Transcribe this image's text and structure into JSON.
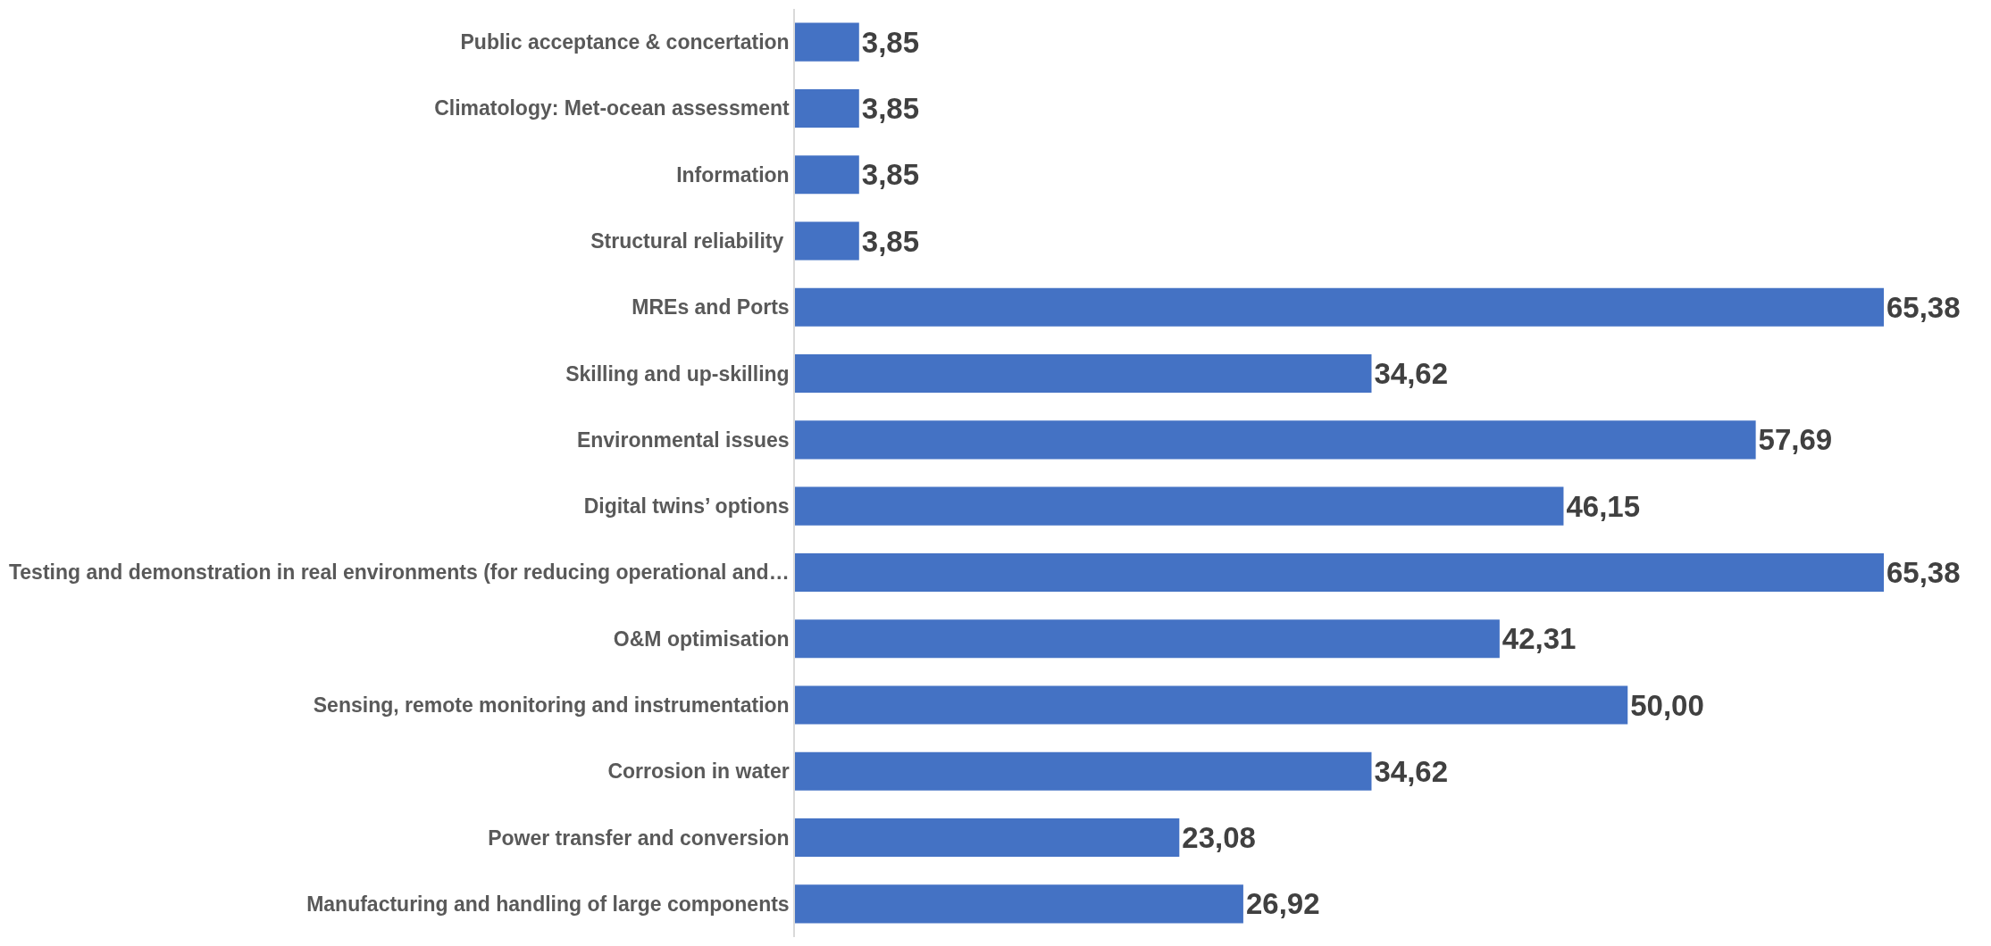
{
  "chart_data": {
    "type": "bar",
    "orientation": "horizontal",
    "color": "#4472c4",
    "categories": [
      "Public acceptance & concertation",
      "Climatology: Met-ocean assessment",
      "Information",
      "Structural reliability ",
      "MREs and Ports",
      "Skilling and up-skilling",
      "Environmental issues",
      "Digital twins’ options",
      "Testing and demonstration in real environments (for reducing operational and…",
      "O&M optimisation",
      "Sensing, remote monitoring and instrumentation",
      "Corrosion in water",
      "Power transfer and conversion",
      "Manufacturing and handling of large components"
    ],
    "values": [
      3.85,
      3.85,
      3.85,
      3.85,
      65.38,
      34.62,
      57.69,
      46.15,
      65.38,
      42.31,
      50.0,
      34.62,
      23.08,
      26.92
    ],
    "value_labels": [
      "3,85",
      "3,85",
      "3,85",
      "3,85",
      "65,38",
      "34,62",
      "57,69",
      "46,15",
      "65,38",
      "42,31",
      "50,00",
      "34,62",
      "23,08",
      "26,92"
    ]
  }
}
